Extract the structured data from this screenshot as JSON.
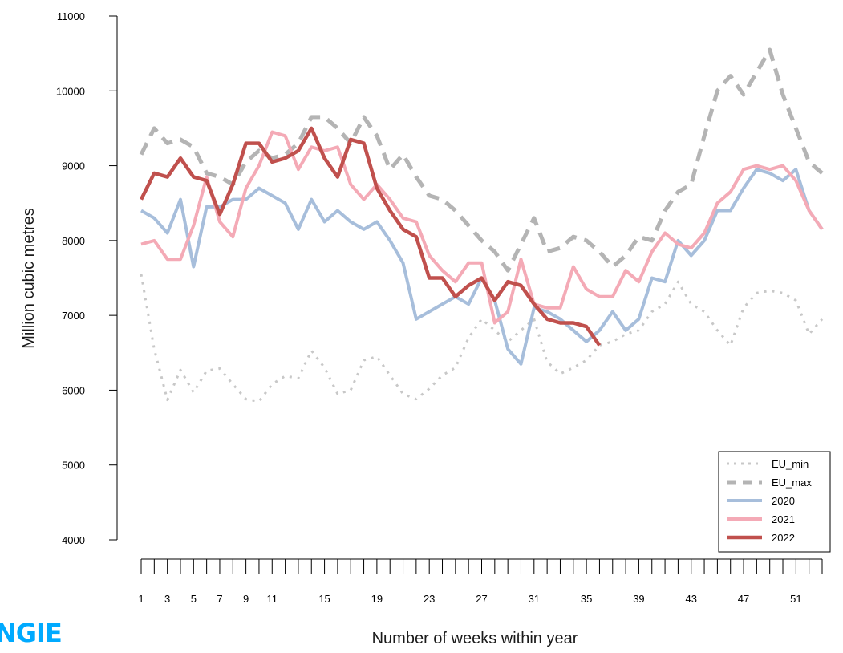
{
  "chart_data": {
    "type": "line",
    "title": "",
    "xlabel": "Number of weeks within year",
    "ylabel": "Million cubic metres",
    "xlim": [
      1,
      53
    ],
    "ylim": [
      4000,
      11000
    ],
    "yticks": [
      4000,
      5000,
      6000,
      7000,
      8000,
      9000,
      10000,
      11000
    ],
    "xtick_labels": [
      1,
      3,
      5,
      7,
      9,
      11,
      15,
      19,
      23,
      27,
      31,
      35,
      39,
      43,
      47,
      51
    ],
    "grid": false,
    "legend_position": "bottom-right",
    "series": [
      {
        "name": "EU_min",
        "color": "#c8c8c8",
        "style": "dotted",
        "x": [
          1,
          2,
          3,
          4,
          5,
          6,
          7,
          8,
          9,
          10,
          11,
          12,
          13,
          14,
          15,
          16,
          17,
          18,
          19,
          20,
          21,
          22,
          23,
          24,
          25,
          26,
          27,
          28,
          29,
          30,
          31,
          32,
          33,
          34,
          35,
          36,
          37,
          38,
          39,
          40,
          41,
          42,
          43,
          44,
          45,
          46,
          47,
          48,
          49,
          50,
          51,
          52,
          53
        ],
        "values": [
          7550,
          6550,
          5870,
          6270,
          5970,
          6260,
          6290,
          6080,
          5880,
          5850,
          6080,
          6190,
          6160,
          6530,
          6300,
          5950,
          6000,
          6400,
          6450,
          6200,
          5950,
          5880,
          6020,
          6200,
          6300,
          6700,
          6950,
          6800,
          6650,
          6800,
          6950,
          6380,
          6220,
          6300,
          6400,
          6600,
          6650,
          6750,
          6800,
          7050,
          7150,
          7450,
          7150,
          7050,
          6800,
          6600,
          7100,
          7300,
          7330,
          7300,
          7200,
          6750,
          6950
        ]
      },
      {
        "name": "EU_max",
        "color": "#b4b4b4",
        "style": "dashed",
        "x": [
          1,
          2,
          3,
          4,
          5,
          6,
          7,
          8,
          9,
          10,
          11,
          12,
          13,
          14,
          15,
          16,
          17,
          18,
          19,
          20,
          21,
          22,
          23,
          24,
          25,
          26,
          27,
          28,
          29,
          30,
          31,
          32,
          33,
          34,
          35,
          36,
          37,
          38,
          39,
          40,
          41,
          42,
          43,
          44,
          45,
          46,
          47,
          48,
          49,
          50,
          51,
          52,
          53
        ],
        "values": [
          9150,
          9500,
          9300,
          9350,
          9250,
          8900,
          8850,
          8750,
          9050,
          9200,
          9100,
          9150,
          9300,
          9650,
          9650,
          9500,
          9300,
          9650,
          9400,
          8950,
          9150,
          8850,
          8600,
          8550,
          8400,
          8200,
          8000,
          7850,
          7600,
          7950,
          8300,
          7850,
          7900,
          8050,
          8000,
          7850,
          7650,
          7800,
          8050,
          8000,
          8400,
          8650,
          8750,
          9400,
          10000,
          10200,
          9950,
          10250,
          10550,
          9950,
          9500,
          9050,
          8900
        ]
      },
      {
        "name": "2020",
        "color": "#a7bedb",
        "style": "solid",
        "x": [
          1,
          2,
          3,
          4,
          5,
          6,
          7,
          8,
          9,
          10,
          11,
          12,
          13,
          14,
          15,
          16,
          17,
          18,
          19,
          20,
          21,
          22,
          23,
          24,
          25,
          26,
          27,
          28,
          29,
          30,
          31,
          32,
          33,
          34,
          35,
          36,
          37,
          38,
          39,
          40,
          41,
          42,
          43,
          44,
          45,
          46,
          47,
          48,
          49,
          50,
          51,
          52,
          53
        ],
        "values": [
          8400,
          8300,
          8100,
          8550,
          7650,
          8450,
          8450,
          8550,
          8550,
          8700,
          8600,
          8500,
          8150,
          8550,
          8250,
          8400,
          8250,
          8150,
          8250,
          8000,
          7700,
          6950,
          7050,
          7150,
          7250,
          7150,
          7500,
          7200,
          6550,
          6350,
          7100,
          7050,
          6950,
          6800,
          6650,
          6800,
          7050,
          6800,
          6950,
          7500,
          7450,
          8000,
          7800,
          8000,
          8400,
          8400,
          8700,
          8950,
          8900,
          8800,
          8950,
          8400,
          8150
        ]
      },
      {
        "name": "2021",
        "color": "#f4aab6",
        "style": "solid",
        "x": [
          1,
          2,
          3,
          4,
          5,
          6,
          7,
          8,
          9,
          10,
          11,
          12,
          13,
          14,
          15,
          16,
          17,
          18,
          19,
          20,
          21,
          22,
          23,
          24,
          25,
          26,
          27,
          28,
          29,
          30,
          31,
          32,
          33,
          34,
          35,
          36,
          37,
          38,
          39,
          40,
          41,
          42,
          43,
          44,
          45,
          46,
          47,
          48,
          49,
          50,
          51,
          52,
          53
        ],
        "values": [
          7950,
          8000,
          7750,
          7750,
          8200,
          8850,
          8250,
          8050,
          8700,
          9000,
          9450,
          9400,
          8950,
          9250,
          9200,
          9250,
          8750,
          8550,
          8750,
          8550,
          8300,
          8250,
          7800,
          7600,
          7450,
          7700,
          7700,
          6900,
          7050,
          7750,
          7150,
          7100,
          7100,
          7650,
          7350,
          7250,
          7250,
          7600,
          7450,
          7850,
          8100,
          7950,
          7900,
          8100,
          8500,
          8650,
          8950,
          9000,
          8950,
          9000,
          8800,
          8400,
          8150
        ]
      },
      {
        "name": "2022",
        "color": "#c0504d",
        "style": "solid",
        "x": [
          1,
          2,
          3,
          4,
          5,
          6,
          7,
          8,
          9,
          10,
          11,
          12,
          13,
          14,
          15,
          16,
          17,
          18,
          19,
          20,
          21,
          22,
          23,
          24,
          25,
          26,
          27,
          28,
          29,
          30,
          31,
          32,
          33,
          34,
          35,
          36
        ],
        "values": [
          8550,
          8900,
          8850,
          9100,
          8850,
          8800,
          8350,
          8750,
          9300,
          9300,
          9050,
          9100,
          9200,
          9500,
          9100,
          8850,
          9350,
          9300,
          8700,
          8400,
          8150,
          8050,
          7500,
          7500,
          7250,
          7400,
          7500,
          7200,
          7450,
          7400,
          7150,
          6950,
          6900,
          6900,
          6850,
          6600
        ]
      }
    ]
  }
}
